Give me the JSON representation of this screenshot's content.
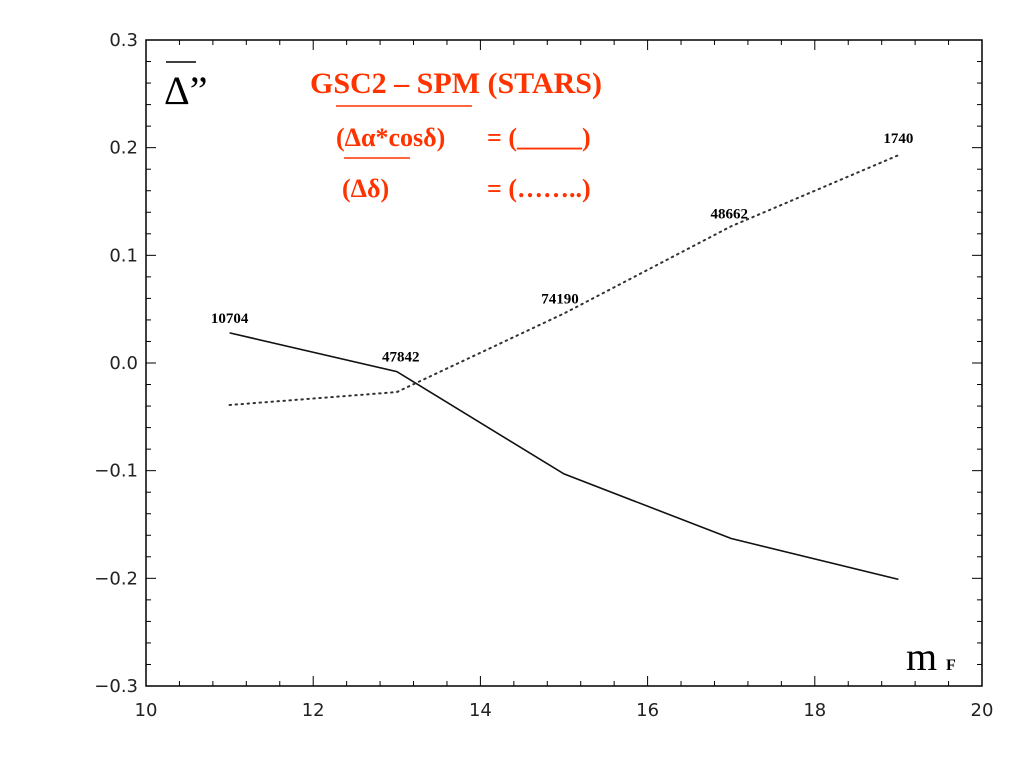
{
  "chart_data": {
    "type": "line",
    "title": "GSC2 – SPM (STARS)",
    "xlabel": "m",
    "xlabel_sub": "F",
    "ylabel": "Δ”",
    "xlim": [
      10,
      20
    ],
    "ylim": [
      -0.3,
      0.3
    ],
    "xticks": [
      10,
      12,
      14,
      16,
      18,
      20
    ],
    "yticks": [
      0.3,
      0.2,
      0.1,
      0.0,
      -0.1,
      -0.2,
      -0.3
    ],
    "ytick_labels": [
      "0.3",
      "0.2",
      "0.1",
      "0.0",
      "−0.1",
      "−0.2",
      "−0.3"
    ],
    "grid": false,
    "legend": {
      "position": "top-center",
      "color": "#ff3300",
      "entries": [
        {
          "label": "(Δα*cosδ)",
          "equals": "= (_____)"
        },
        {
          "label": "(Δδ)",
          "equals": "= (……..)"
        }
      ]
    },
    "series": [
      {
        "style": "solid",
        "color": "#111111",
        "x": [
          11,
          13,
          15,
          17,
          19
        ],
        "y": [
          0.028,
          -0.008,
          -0.103,
          -0.163,
          -0.201
        ]
      },
      {
        "style": "dotted",
        "color": "#333333",
        "x": [
          11,
          13,
          15,
          17,
          19
        ],
        "y": [
          -0.039,
          -0.027,
          0.046,
          0.127,
          0.193
        ]
      }
    ],
    "annotations": [
      {
        "text": "10704",
        "x": 11,
        "y": 0.028
      },
      {
        "text": "47842",
        "x": 13,
        "y": -0.008
      },
      {
        "text": "74190",
        "x": 15,
        "y": 0.046
      },
      {
        "text": "48662",
        "x": 17,
        "y": 0.127
      },
      {
        "text": "1740",
        "x": 19,
        "y": 0.193
      }
    ]
  }
}
